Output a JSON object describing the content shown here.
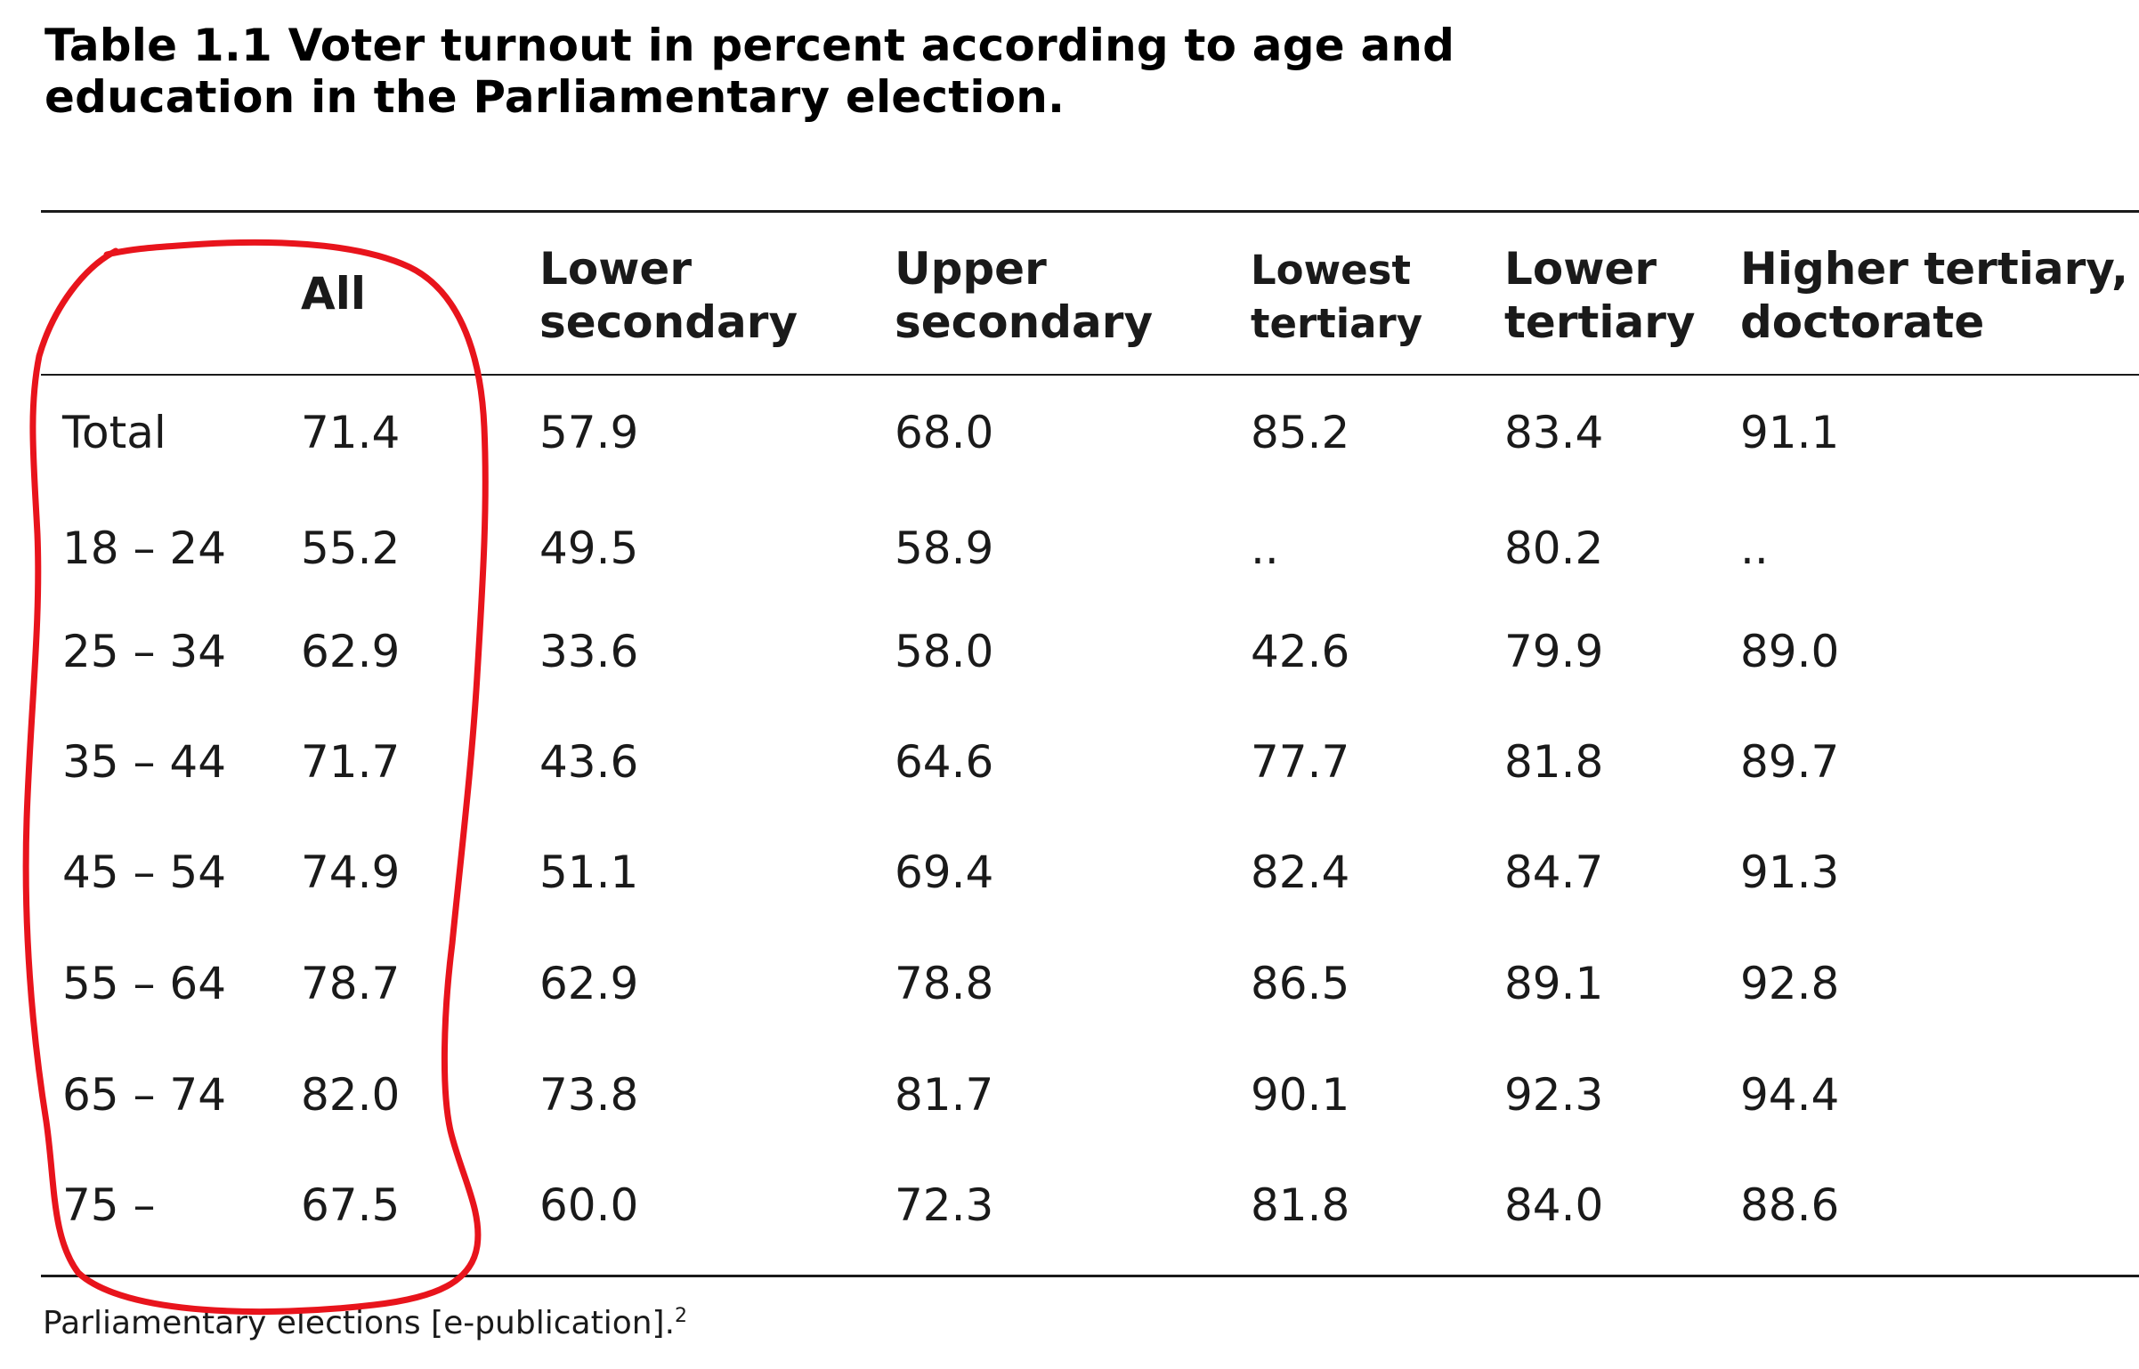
{
  "title": {
    "line1": "Table 1.1 Voter turnout in percent according to age and",
    "line2": "education in the Parliamentary election."
  },
  "headers": [
    "All",
    "Lower\nsecondary",
    "Upper\nsecondary",
    "Lowest\ntertiary",
    "Lower\ntertiary",
    "Higher tertiary,\ndoctorate"
  ],
  "rows": [
    {
      "label": "Total",
      "values": [
        "71.4",
        "57.9",
        "68.0",
        "85.2",
        "83.4",
        "91.1"
      ]
    },
    {
      "label": "18 – 24",
      "values": [
        "55.2",
        "49.5",
        "58.9",
        "..",
        "80.2",
        ".."
      ]
    },
    {
      "label": "25 – 34",
      "values": [
        "62.9",
        "33.6",
        "58.0",
        "42.6",
        "79.9",
        "89.0"
      ]
    },
    {
      "label": "35 – 44",
      "values": [
        "71.7",
        "43.6",
        "64.6",
        "77.7",
        "81.8",
        "89.7"
      ]
    },
    {
      "label": "45 – 54",
      "values": [
        "74.9",
        "51.1",
        "69.4",
        "82.4",
        "84.7",
        "91.3"
      ]
    },
    {
      "label": "55 – 64",
      "values": [
        "78.7",
        "62.9",
        "78.8",
        "86.5",
        "89.1",
        "92.8"
      ]
    },
    {
      "label": "65 – 74",
      "values": [
        "82.0",
        "73.8",
        "81.7",
        "90.1",
        "92.3",
        "94.4"
      ]
    },
    {
      "label": "75 –",
      "values": [
        "67.5",
        "60.0",
        "72.3",
        "81.8",
        "84.0",
        "88.6"
      ]
    }
  ],
  "source": {
    "text": "Parliamentary elections [e-publication].",
    "footnote": "2"
  },
  "annotation_color": "#e8141c"
}
